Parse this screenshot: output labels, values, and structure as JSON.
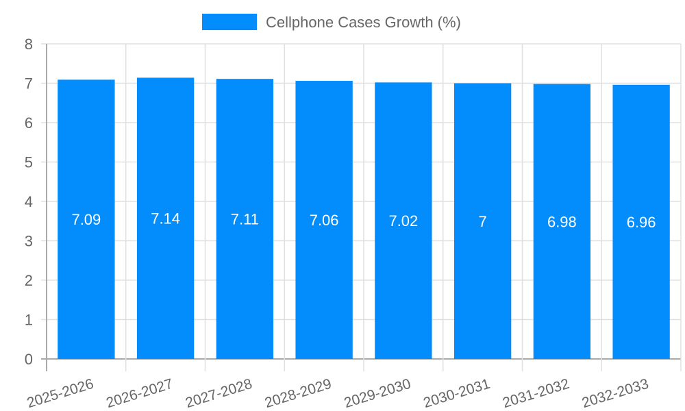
{
  "chart_data": {
    "type": "bar",
    "title": "",
    "legend": [
      "Cellphone Cases Growth (%)"
    ],
    "legend_position": "top",
    "categories": [
      "2025-2026",
      "2026-2027",
      "2027-2028",
      "2028-2029",
      "2029-2030",
      "2030-2031",
      "2031-2032",
      "2032-2033"
    ],
    "series": [
      {
        "name": "Cellphone Cases Growth (%)",
        "values": [
          7.09,
          7.14,
          7.11,
          7.06,
          7.02,
          7,
          6.98,
          6.96
        ],
        "color": "#038cfc"
      }
    ],
    "data_labels": [
      "7.09",
      "7.14",
      "7.11",
      "7.06",
      "7.02",
      "7",
      "6.98",
      "6.96"
    ],
    "xlabel": "",
    "ylabel": "",
    "ylim": [
      0,
      8
    ],
    "yticks": [
      0,
      1,
      2,
      3,
      4,
      5,
      6,
      7,
      8
    ],
    "grid": true
  },
  "colors": {
    "bar": "#038cfc",
    "grid": "#e0e0e0",
    "axis": "#aaaaaa",
    "text": "#666666"
  }
}
